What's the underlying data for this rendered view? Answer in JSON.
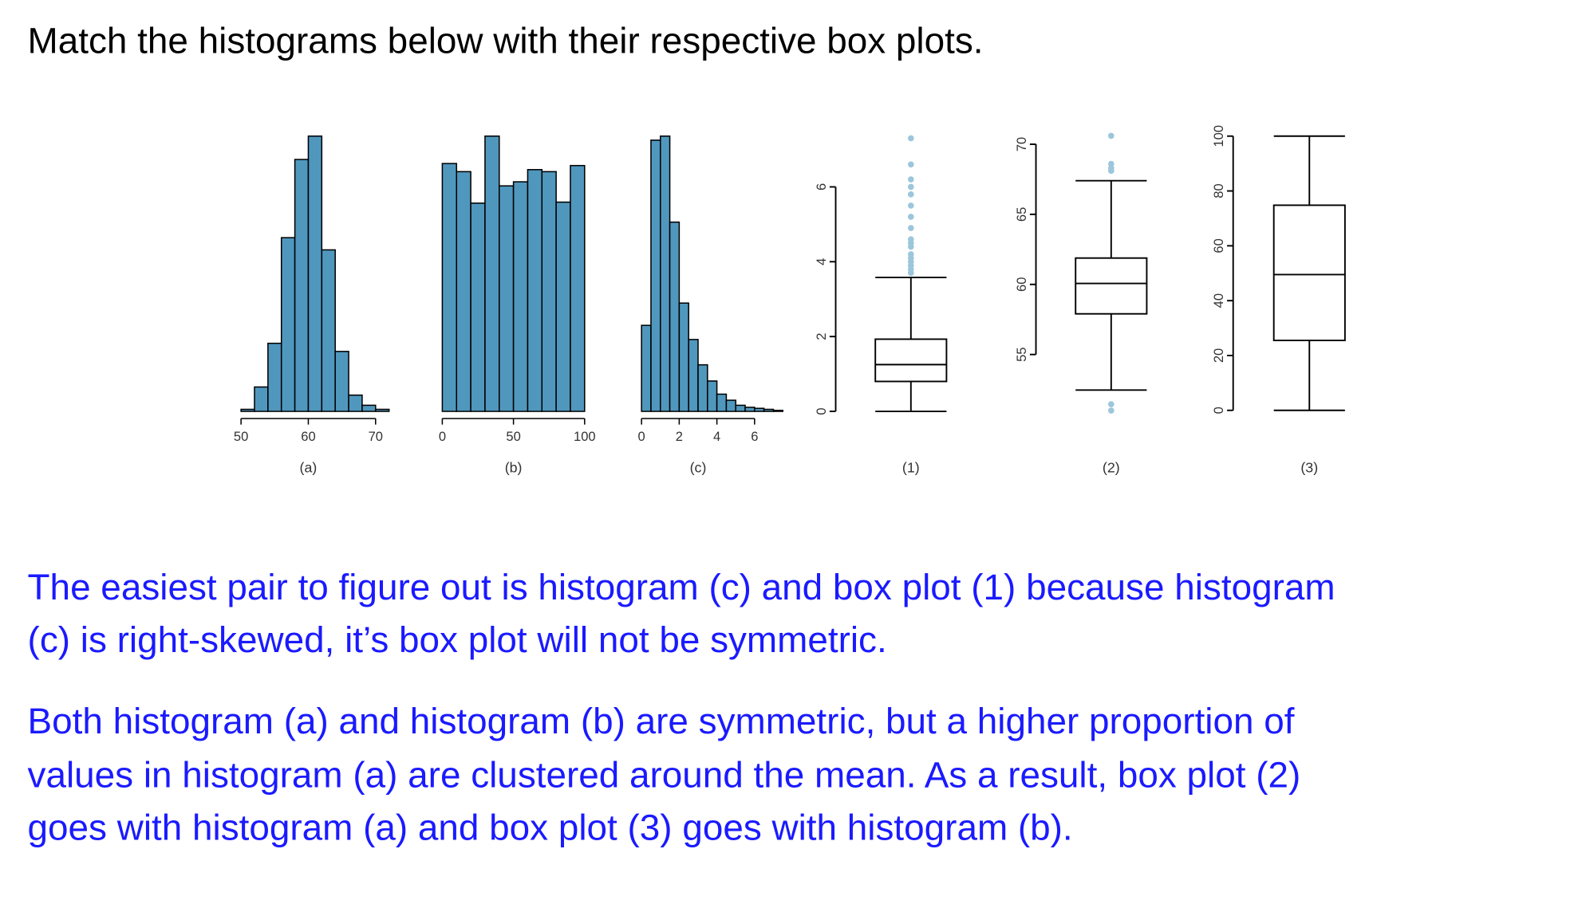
{
  "title": "Match the histograms below with their respective box plots.",
  "chart_data": [
    {
      "type": "histogram",
      "label": "(a)",
      "bins": [
        50,
        52,
        54,
        56,
        58,
        60,
        62,
        64,
        66,
        68,
        70,
        72
      ],
      "values": [
        2,
        24,
        67,
        171,
        248,
        271,
        159,
        59,
        16,
        6,
        2
      ],
      "xlim": [
        50,
        72
      ],
      "xticks": [
        50,
        60,
        70
      ],
      "color": "#5097bd"
    },
    {
      "type": "histogram",
      "label": "(b)",
      "bins": [
        0,
        10,
        20,
        30,
        40,
        50,
        60,
        70,
        80,
        90,
        100
      ],
      "values": [
        244,
        236,
        205,
        271,
        222,
        226,
        238,
        236,
        206,
        242
      ],
      "xlim": [
        0,
        100
      ],
      "xticks": [
        0,
        50,
        100
      ],
      "color": "#5097bd"
    },
    {
      "type": "histogram",
      "label": "(c)",
      "bins": [
        0,
        0.5,
        1,
        1.5,
        2,
        2.5,
        3,
        3.5,
        4,
        4.5,
        5,
        5.5,
        6,
        6.5,
        7,
        7.5
      ],
      "values": [
        85,
        268,
        272,
        187,
        107,
        71,
        46,
        30,
        17,
        11,
        6,
        4,
        3,
        2,
        1
      ],
      "xlim": [
        0,
        7.5
      ],
      "xticks": [
        0,
        2,
        4,
        6
      ],
      "color": "#5097bd"
    },
    {
      "type": "box",
      "label": "(1)",
      "min": 0,
      "q1": 0.8,
      "median": 1.25,
      "q3": 1.93,
      "max": 3.58,
      "outliers": [
        3.7,
        3.8,
        3.9,
        4.0,
        4.1,
        4.2,
        4.4,
        4.5,
        4.6,
        4.9,
        5.2,
        5.5,
        5.8,
        6.0,
        6.2,
        6.6,
        7.3
      ],
      "ylim": [
        0,
        6
      ],
      "yticks": [
        0,
        2,
        4,
        6
      ],
      "outlier_color": "#9cc6dc"
    },
    {
      "type": "box",
      "label": "(2)",
      "min": 52.46,
      "q1": 57.9,
      "median": 60.07,
      "q3": 61.88,
      "max": 67.4,
      "outliers": [
        51.0,
        51.45,
        68.1,
        68.3,
        68.6,
        70.6
      ],
      "ylim": [
        55,
        70
      ],
      "yticks": [
        55,
        60,
        65,
        70
      ],
      "outlier_color": "#9cc6dc"
    },
    {
      "type": "box",
      "label": "(3)",
      "min": 0,
      "q1": 25.5,
      "median": 49.5,
      "q3": 74.8,
      "max": 100,
      "outliers": [],
      "ylim": [
        0,
        100
      ],
      "yticks": [
        0,
        20,
        40,
        60,
        80,
        100
      ],
      "outlier_color": "#9cc6dc"
    }
  ],
  "paragraphs": [
    [
      "The easiest pair to figure out is histogram (c) and box plot (1) because histogram",
      "(c) is right-skewed, it’s box plot will not be symmetric."
    ],
    [
      "Both histogram (a) and histogram (b) are symmetric, but a higher proportion of",
      "values in histogram (a) are clustered around the mean.  As a result, box plot (2)",
      "goes with histogram (a) and box plot (3) goes with histogram (b)."
    ]
  ]
}
